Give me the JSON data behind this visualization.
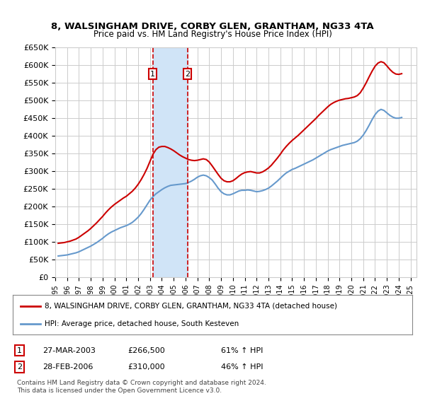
{
  "title": "8, WALSINGHAM DRIVE, CORBY GLEN, GRANTHAM, NG33 4TA",
  "subtitle": "Price paid vs. HM Land Registry's House Price Index (HPI)",
  "legend_line1": "8, WALSINGHAM DRIVE, CORBY GLEN, GRANTHAM, NG33 4TA (detached house)",
  "legend_line2": "HPI: Average price, detached house, South Kesteven",
  "footer1": "Contains HM Land Registry data © Crown copyright and database right 2024.",
  "footer2": "This data is licensed under the Open Government Licence v3.0.",
  "transaction1_label": "1",
  "transaction1_date": "27-MAR-2003",
  "transaction1_price": "£266,500",
  "transaction1_hpi": "61% ↑ HPI",
  "transaction2_label": "2",
  "transaction2_date": "28-FEB-2006",
  "transaction2_price": "£310,000",
  "transaction2_hpi": "46% ↑ HPI",
  "vline1_x": 2003.23,
  "vline2_x": 2006.16,
  "ylim": [
    0,
    650000
  ],
  "xlim_start": 1995.0,
  "xlim_end": 2025.5,
  "red_color": "#cc0000",
  "blue_color": "#6699cc",
  "shade_color": "#d0e4f7",
  "grid_color": "#cccccc",
  "background_color": "#ffffff",
  "hpi_data": {
    "x": [
      1995.25,
      1995.5,
      1995.75,
      1996.0,
      1996.25,
      1996.5,
      1996.75,
      1997.0,
      1997.25,
      1997.5,
      1997.75,
      1998.0,
      1998.25,
      1998.5,
      1998.75,
      1999.0,
      1999.25,
      1999.5,
      1999.75,
      2000.0,
      2000.25,
      2000.5,
      2000.75,
      2001.0,
      2001.25,
      2001.5,
      2001.75,
      2002.0,
      2002.25,
      2002.5,
      2002.75,
      2003.0,
      2003.25,
      2003.5,
      2003.75,
      2004.0,
      2004.25,
      2004.5,
      2004.75,
      2005.0,
      2005.25,
      2005.5,
      2005.75,
      2006.0,
      2006.25,
      2006.5,
      2006.75,
      2007.0,
      2007.25,
      2007.5,
      2007.75,
      2008.0,
      2008.25,
      2008.5,
      2008.75,
      2009.0,
      2009.25,
      2009.5,
      2009.75,
      2010.0,
      2010.25,
      2010.5,
      2010.75,
      2011.0,
      2011.25,
      2011.5,
      2011.75,
      2012.0,
      2012.25,
      2012.5,
      2012.75,
      2013.0,
      2013.25,
      2013.5,
      2013.75,
      2014.0,
      2014.25,
      2014.5,
      2014.75,
      2015.0,
      2015.25,
      2015.5,
      2015.75,
      2016.0,
      2016.25,
      2016.5,
      2016.75,
      2017.0,
      2017.25,
      2017.5,
      2017.75,
      2018.0,
      2018.25,
      2018.5,
      2018.75,
      2019.0,
      2019.25,
      2019.5,
      2019.75,
      2020.0,
      2020.25,
      2020.5,
      2020.75,
      2021.0,
      2021.25,
      2021.5,
      2021.75,
      2022.0,
      2022.25,
      2022.5,
      2022.75,
      2023.0,
      2023.25,
      2023.5,
      2023.75,
      2024.0,
      2024.25
    ],
    "y": [
      60000,
      61000,
      62000,
      63000,
      65000,
      67000,
      69000,
      72000,
      76000,
      80000,
      84000,
      88000,
      93000,
      98000,
      104000,
      110000,
      117000,
      123000,
      128000,
      132000,
      136000,
      140000,
      143000,
      146000,
      150000,
      155000,
      162000,
      170000,
      180000,
      192000,
      205000,
      218000,
      228000,
      236000,
      242000,
      248000,
      253000,
      257000,
      260000,
      261000,
      262000,
      263000,
      264000,
      265000,
      268000,
      272000,
      277000,
      283000,
      287000,
      289000,
      287000,
      282000,
      275000,
      264000,
      252000,
      242000,
      236000,
      233000,
      233000,
      236000,
      240000,
      244000,
      246000,
      246000,
      247000,
      246000,
      244000,
      242000,
      243000,
      245000,
      248000,
      252000,
      258000,
      265000,
      272000,
      280000,
      288000,
      295000,
      300000,
      305000,
      308000,
      312000,
      316000,
      320000,
      324000,
      328000,
      332000,
      337000,
      342000,
      347000,
      352000,
      357000,
      361000,
      364000,
      367000,
      370000,
      373000,
      375000,
      377000,
      379000,
      381000,
      385000,
      392000,
      402000,
      415000,
      430000,
      446000,
      460000,
      470000,
      475000,
      472000,
      465000,
      458000,
      453000,
      450000,
      450000,
      452000
    ]
  },
  "property_data": {
    "x": [
      1995.25,
      1995.5,
      1995.75,
      1996.0,
      1996.25,
      1996.5,
      1996.75,
      1997.0,
      1997.25,
      1997.5,
      1997.75,
      1998.0,
      1998.25,
      1998.5,
      1998.75,
      1999.0,
      1999.25,
      1999.5,
      1999.75,
      2000.0,
      2000.25,
      2000.5,
      2000.75,
      2001.0,
      2001.25,
      2001.5,
      2001.75,
      2002.0,
      2002.25,
      2002.5,
      2002.75,
      2003.0,
      2003.25,
      2003.5,
      2003.75,
      2004.0,
      2004.25,
      2004.5,
      2004.75,
      2005.0,
      2005.25,
      2005.5,
      2005.75,
      2006.0,
      2006.25,
      2006.5,
      2006.75,
      2007.0,
      2007.25,
      2007.5,
      2007.75,
      2008.0,
      2008.25,
      2008.5,
      2008.75,
      2009.0,
      2009.25,
      2009.5,
      2009.75,
      2010.0,
      2010.25,
      2010.5,
      2010.75,
      2011.0,
      2011.25,
      2011.5,
      2011.75,
      2012.0,
      2012.25,
      2012.5,
      2012.75,
      2013.0,
      2013.25,
      2013.5,
      2013.75,
      2014.0,
      2014.25,
      2014.5,
      2014.75,
      2015.0,
      2015.25,
      2015.5,
      2015.75,
      2016.0,
      2016.25,
      2016.5,
      2016.75,
      2017.0,
      2017.25,
      2017.5,
      2017.75,
      2018.0,
      2018.25,
      2018.5,
      2018.75,
      2019.0,
      2019.25,
      2019.5,
      2019.75,
      2020.0,
      2020.25,
      2020.5,
      2020.75,
      2021.0,
      2021.25,
      2021.5,
      2021.75,
      2022.0,
      2022.25,
      2022.5,
      2022.75,
      2023.0,
      2023.25,
      2023.5,
      2023.75,
      2024.0,
      2024.25
    ],
    "y": [
      96000,
      97000,
      98000,
      100000,
      102000,
      105000,
      108000,
      113000,
      119000,
      125000,
      131000,
      138000,
      146000,
      154000,
      163000,
      172000,
      182000,
      191000,
      199000,
      206000,
      212000,
      218000,
      224000,
      229000,
      236000,
      243000,
      252000,
      263000,
      276000,
      291000,
      308000,
      328000,
      348000,
      361000,
      368000,
      370000,
      370000,
      367000,
      363000,
      358000,
      352000,
      346000,
      341000,
      337000,
      333000,
      331000,
      330000,
      331000,
      333000,
      335000,
      333000,
      326000,
      315000,
      303000,
      291000,
      280000,
      273000,
      270000,
      270000,
      273000,
      279000,
      286000,
      292000,
      296000,
      298000,
      299000,
      297000,
      295000,
      295000,
      298000,
      303000,
      309000,
      317000,
      327000,
      337000,
      348000,
      360000,
      370000,
      379000,
      387000,
      394000,
      401000,
      409000,
      417000,
      425000,
      433000,
      441000,
      449000,
      458000,
      466000,
      474000,
      482000,
      489000,
      494000,
      498000,
      501000,
      503000,
      505000,
      506000,
      508000,
      510000,
      514000,
      522000,
      535000,
      550000,
      567000,
      583000,
      597000,
      606000,
      610000,
      607000,
      598000,
      588000,
      580000,
      575000,
      574000,
      576000
    ]
  }
}
